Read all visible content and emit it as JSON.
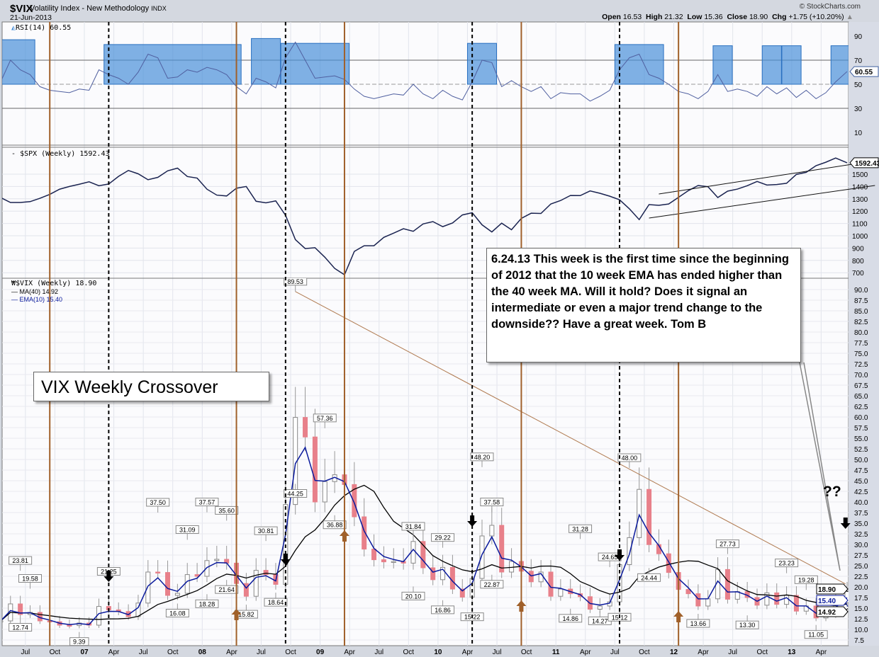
{
  "header": {
    "symbol": "$VIX",
    "description": "Volatility Index - New Methodology",
    "exchange": "INDX",
    "date": "21-Jun-2013",
    "copyright": "© StockCharts.com",
    "open_label": "Open",
    "open": "16.53",
    "high_label": "High",
    "high": "21.32",
    "low_label": "Low",
    "low": "15.36",
    "close_label": "Close",
    "close": "18.90",
    "chg_label": "Chg",
    "chg": "+1.75 (+10.20%)"
  },
  "legends": {
    "rsi": "RSI(14) 60.55",
    "spx": "$SPX (Weekly) 1592.43",
    "vix": "$VIX (Weekly) 18.90",
    "ma": "MA(40) 14.92",
    "ema": "EMA(10) 15.40"
  },
  "annotations": {
    "title": "VIX Weekly Crossover",
    "note": "6.24.13  This week is the first time since the beginning of 2012 that the 10 week EMA has ended higher than the 40 week MA.  Will it hold? Does it signal an intermediate or even a major trend change to the downside?? Have a great week.  Tom B",
    "question": "??"
  },
  "colors": {
    "price": "#e8808a",
    "ma": "#000000",
    "ema": "#0a1a9c",
    "rsi": "#5060a0",
    "spx": "#1a2350",
    "box": "#4a90d9",
    "brown": "#a0602a",
    "trend": "#b07a50"
  },
  "chart_data": {
    "type": "line",
    "x_ticks": [
      {
        "t": "2006-07",
        "label": "Jul"
      },
      {
        "t": "2006-10",
        "label": "Oct"
      },
      {
        "t": "2007-01",
        "label": "07",
        "major": true
      },
      {
        "t": "2007-04",
        "label": "Apr"
      },
      {
        "t": "2007-07",
        "label": "Jul"
      },
      {
        "t": "2007-10",
        "label": "Oct"
      },
      {
        "t": "2008-01",
        "label": "08",
        "major": true
      },
      {
        "t": "2008-04",
        "label": "Apr"
      },
      {
        "t": "2008-07",
        "label": "Jul"
      },
      {
        "t": "2008-10",
        "label": "Oct"
      },
      {
        "t": "2009-01",
        "label": "09",
        "major": true
      },
      {
        "t": "2009-04",
        "label": "Apr"
      },
      {
        "t": "2009-07",
        "label": "Jul"
      },
      {
        "t": "2009-10",
        "label": "Oct"
      },
      {
        "t": "2010-01",
        "label": "10",
        "major": true
      },
      {
        "t": "2010-04",
        "label": "Apr"
      },
      {
        "t": "2010-07",
        "label": "Jul"
      },
      {
        "t": "2010-10",
        "label": "Oct"
      },
      {
        "t": "2011-01",
        "label": "11",
        "major": true
      },
      {
        "t": "2011-04",
        "label": "Apr"
      },
      {
        "t": "2011-07",
        "label": "Jul"
      },
      {
        "t": "2011-10",
        "label": "Oct"
      },
      {
        "t": "2012-01",
        "label": "12",
        "major": true
      },
      {
        "t": "2012-04",
        "label": "Apr"
      },
      {
        "t": "2012-07",
        "label": "Jul"
      },
      {
        "t": "2012-10",
        "label": "Oct"
      },
      {
        "t": "2013-01",
        "label": "13",
        "major": true
      },
      {
        "t": "2013-04",
        "label": "Apr"
      }
    ],
    "x_range": [
      "2006-04",
      "2013-06"
    ],
    "dates": [
      "2006-04",
      "2006-05",
      "2006-06",
      "2006-07",
      "2006-08",
      "2006-09",
      "2006-10",
      "2006-11",
      "2006-12",
      "2007-01",
      "2007-02",
      "2007-03",
      "2007-04",
      "2007-05",
      "2007-06",
      "2007-07",
      "2007-08",
      "2007-09",
      "2007-10",
      "2007-11",
      "2007-12",
      "2008-01",
      "2008-02",
      "2008-03",
      "2008-04",
      "2008-05",
      "2008-06",
      "2008-07",
      "2008-08",
      "2008-09",
      "2008-10",
      "2008-11",
      "2008-12",
      "2009-01",
      "2009-02",
      "2009-03",
      "2009-04",
      "2009-05",
      "2009-06",
      "2009-07",
      "2009-08",
      "2009-09",
      "2009-10",
      "2009-11",
      "2009-12",
      "2010-01",
      "2010-02",
      "2010-03",
      "2010-04",
      "2010-05",
      "2010-06",
      "2010-07",
      "2010-08",
      "2010-09",
      "2010-10",
      "2010-11",
      "2010-12",
      "2011-01",
      "2011-02",
      "2011-03",
      "2011-04",
      "2011-05",
      "2011-06",
      "2011-07",
      "2011-08",
      "2011-09",
      "2011-10",
      "2011-11",
      "2011-12",
      "2012-01",
      "2012-02",
      "2012-03",
      "2012-04",
      "2012-05",
      "2012-06",
      "2012-07",
      "2012-08",
      "2012-09",
      "2012-10",
      "2012-11",
      "2012-12",
      "2013-01",
      "2013-02",
      "2013-03",
      "2013-04",
      "2013-05",
      "2013-06"
    ],
    "panels": [
      {
        "name": "RSI(14)",
        "ylim": [
          0,
          100
        ],
        "y_ticks": [
          10,
          30,
          50,
          70,
          90
        ],
        "levels": [
          30,
          50,
          70
        ],
        "last_value": "60.55",
        "values": [
          52,
          70,
          62,
          58,
          48,
          45,
          44,
          43,
          46,
          45,
          62,
          58,
          55,
          50,
          60,
          75,
          72,
          55,
          56,
          62,
          60,
          64,
          62,
          58,
          48,
          42,
          55,
          52,
          47,
          72,
          85,
          70,
          55,
          56,
          57,
          54,
          46,
          40,
          38,
          40,
          42,
          41,
          50,
          42,
          38,
          45,
          40,
          37,
          52,
          70,
          68,
          48,
          53,
          48,
          44,
          48,
          38,
          43,
          42,
          42,
          36,
          40,
          45,
          62,
          72,
          75,
          58,
          55,
          50,
          44,
          42,
          38,
          44,
          58,
          44,
          46,
          44,
          40,
          48,
          42,
          47,
          39,
          45,
          38,
          43,
          52,
          60.55
        ],
        "highlight_boxes": [
          {
            "from": "2006-04",
            "to": "2006-07",
            "top": 87
          },
          {
            "from": "2007-03",
            "to": "2008-04",
            "top": 83
          },
          {
            "from": "2008-06",
            "to": "2008-08",
            "top": 88
          },
          {
            "from": "2008-09",
            "to": "2009-03",
            "top": 84
          },
          {
            "from": "2010-04",
            "to": "2010-06",
            "top": 84
          },
          {
            "from": "2011-07",
            "to": "2011-11",
            "top": 83
          },
          {
            "from": "2012-05",
            "to": "2012-06",
            "top": 82
          },
          {
            "from": "2012-10",
            "to": "2012-11",
            "top": 82
          },
          {
            "from": "2012-12",
            "to": "2013-01",
            "top": 82
          },
          {
            "from": "2013-05",
            "to": "2013-06",
            "top": 82
          }
        ]
      },
      {
        "name": "$SPX (Weekly)",
        "ylim": [
          650,
          1700
        ],
        "y_ticks": [
          700,
          800,
          900,
          1000,
          1100,
          1200,
          1300,
          1400,
          1500
        ],
        "last_value": "1592.43",
        "values": [
          1310,
          1270,
          1270,
          1277,
          1304,
          1336,
          1378,
          1400,
          1418,
          1438,
          1406,
          1420,
          1482,
          1530,
          1503,
          1455,
          1474,
          1527,
          1549,
          1481,
          1468,
          1378,
          1330,
          1323,
          1386,
          1400,
          1280,
          1267,
          1283,
          1166,
          969,
          896,
          903,
          826,
          735,
          683,
          873,
          919,
          919,
          987,
          1021,
          1057,
          1036,
          1096,
          1115,
          1074,
          1104,
          1169,
          1187,
          1089,
          1031,
          1102,
          1049,
          1141,
          1183,
          1181,
          1258,
          1286,
          1327,
          1326,
          1364,
          1345,
          1321,
          1292,
          1219,
          1131,
          1253,
          1247,
          1258,
          1312,
          1366,
          1408,
          1398,
          1310,
          1362,
          1379,
          1406,
          1441,
          1412,
          1416,
          1426,
          1498,
          1515,
          1569,
          1597,
          1631,
          1592.43
        ],
        "channel": [
          {
            "from": [
              "2011-11",
              1339
            ],
            "to": [
              "2013-09",
              1609
            ]
          },
          {
            "from": [
              "2011-10",
              1144
            ],
            "to": [
              "2013-09",
              1408
            ]
          }
        ]
      },
      {
        "name": "$VIX (Weekly)",
        "ylim": [
          6,
          91
        ],
        "y_ticks": [
          7.5,
          10,
          12.5,
          15,
          17.5,
          20,
          22.5,
          25,
          27.5,
          30,
          32.5,
          35,
          37.5,
          40,
          42.5,
          45,
          47.5,
          50,
          52.5,
          55,
          57.5,
          60,
          62.5,
          65,
          67.5,
          70,
          72.5,
          75,
          77.5,
          80,
          82.5,
          85,
          87.5,
          90
        ],
        "last_values": {
          "close": "18.90",
          "ma": "14.92",
          "ema": "15.40"
        },
        "close": [
          12,
          16,
          13.5,
          14,
          12,
          11.8,
          11,
          10.9,
          11.5,
          11,
          15.4,
          14.6,
          14.2,
          13,
          16.2,
          23.5,
          23.4,
          18,
          18.5,
          22.9,
          22.5,
          26.2,
          26.5,
          25.6,
          20.8,
          17.8,
          23.9,
          22.9,
          20.6,
          39.4,
          59.9,
          55.3,
          40,
          44.8,
          46.4,
          44.1,
          36.5,
          28.9,
          26.4,
          25.9,
          26,
          25.6,
          30.7,
          24.5,
          21.7,
          24.6,
          19.5,
          17.6,
          22,
          32,
          34.5,
          23.5,
          26,
          23.7,
          21.2,
          23.5,
          17.8,
          19.5,
          18.4,
          17.7,
          14.75,
          15.5,
          16.5,
          25.25,
          31.6,
          42.96,
          29.96,
          27.8,
          23.4,
          19.4,
          18.4,
          15.5,
          17.2,
          24.1,
          17.1,
          18.9,
          17.5,
          15.7,
          18.6,
          15.9,
          18,
          14.3,
          15.5,
          12.7,
          13.5,
          16.3,
          18.9
        ],
        "indicators": [
          "MA(40)",
          "EMA(10)"
        ],
        "labels": [
          {
            "t": "2006-06",
            "v": 23.81,
            "pos": "high"
          },
          {
            "t": "2006-07",
            "v": 19.58,
            "pos": "high"
          },
          {
            "t": "2006-06",
            "v": 12.74,
            "pos": "low"
          },
          {
            "t": "2006-12",
            "v": 9.39,
            "pos": "low"
          },
          {
            "t": "2007-03",
            "v": 21.25,
            "pos": "high"
          },
          {
            "t": "2007-08",
            "v": 37.5,
            "pos": "high"
          },
          {
            "t": "2007-11",
            "v": 31.09,
            "pos": "high"
          },
          {
            "t": "2007-10",
            "v": 16.08,
            "pos": "low"
          },
          {
            "t": "2008-01",
            "v": 18.28,
            "pos": "low"
          },
          {
            "t": "2008-01",
            "v": 37.57,
            "pos": "high"
          },
          {
            "t": "2008-03",
            "v": 21.64,
            "pos": "low"
          },
          {
            "t": "2008-03",
            "v": 35.6,
            "pos": "high"
          },
          {
            "t": "2008-05",
            "v": 15.82,
            "pos": "low"
          },
          {
            "t": "2008-07",
            "v": 30.81,
            "pos": "high"
          },
          {
            "t": "2008-08",
            "v": 18.64,
            "pos": "low"
          },
          {
            "t": "2008-10",
            "v": 89.53,
            "pos": "high"
          },
          {
            "t": "2008-10",
            "v": 44.25,
            "pos": "low"
          },
          {
            "t": "2009-01",
            "v": 57.36,
            "pos": "high"
          },
          {
            "t": "2009-02",
            "v": 36.88,
            "pos": "low"
          },
          {
            "t": "2009-10",
            "v": 31.84,
            "pos": "high"
          },
          {
            "t": "2009-10",
            "v": 20.1,
            "pos": "low"
          },
          {
            "t": "2010-01",
            "v": 29.22,
            "pos": "high"
          },
          {
            "t": "2010-01",
            "v": 16.86,
            "pos": "low"
          },
          {
            "t": "2010-04",
            "v": 15.22,
            "pos": "low"
          },
          {
            "t": "2010-05",
            "v": 48.2,
            "pos": "high"
          },
          {
            "t": "2010-06",
            "v": 37.58,
            "pos": "high"
          },
          {
            "t": "2010-06",
            "v": 22.87,
            "pos": "low"
          },
          {
            "t": "2011-03",
            "v": 31.28,
            "pos": "high"
          },
          {
            "t": "2011-02",
            "v": 14.86,
            "pos": "low"
          },
          {
            "t": "2011-05",
            "v": 14.27,
            "pos": "low"
          },
          {
            "t": "2011-06",
            "v": 24.65,
            "pos": "high"
          },
          {
            "t": "2011-07",
            "v": 15.12,
            "pos": "low"
          },
          {
            "t": "2011-08",
            "v": 48.0,
            "pos": "high"
          },
          {
            "t": "2011-10",
            "v": 24.44,
            "pos": "low"
          },
          {
            "t": "2012-06",
            "v": 27.73,
            "pos": "high"
          },
          {
            "t": "2012-03",
            "v": 13.66,
            "pos": "low"
          },
          {
            "t": "2012-08",
            "v": 13.3,
            "pos": "low"
          },
          {
            "t": "2012-12",
            "v": 23.23,
            "pos": "high"
          },
          {
            "t": "2013-02",
            "v": 19.28,
            "pos": "high"
          },
          {
            "t": "2013-03",
            "v": 11.05,
            "pos": "low"
          }
        ],
        "trend_line": {
          "from": [
            "2008-10",
            89.53
          ],
          "to": [
            "2013-06",
            20.7
          ]
        },
        "crossover_up_arrows": [
          {
            "t": "2007-03",
            "v": 21.5
          },
          {
            "t": "2008-09",
            "v": 25.5
          },
          {
            "t": "2010-04",
            "v": 34.5
          },
          {
            "t": "2011-07",
            "v": 26.5
          },
          {
            "t": "2013-06",
            "v": 34
          }
        ],
        "crossover_down_arrows_brown": [
          {
            "t": "2008-04",
            "v": 14.5
          },
          {
            "t": "2009-03",
            "v": 33
          },
          {
            "t": "2010-09",
            "v": 16.5
          },
          {
            "t": "2012-01",
            "v": 14
          }
        ]
      }
    ],
    "vertical_lines_dashed_black": [
      "2007-03",
      "2008-09",
      "2010-04",
      "2011-07"
    ],
    "vertical_lines_brown": [
      "2006-09",
      "2008-04",
      "2009-03",
      "2010-09",
      "2012-01"
    ],
    "grid": true
  }
}
